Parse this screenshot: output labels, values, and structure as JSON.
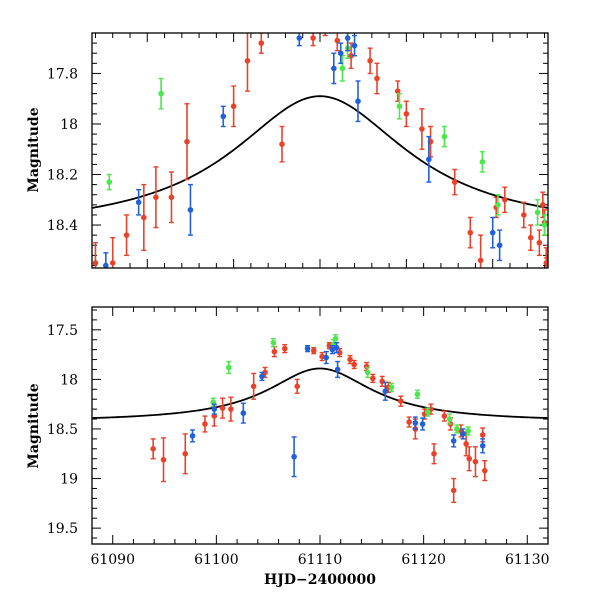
{
  "colors": {
    "red": "#e8432a",
    "green": "#4ae84a",
    "blue": "#2060d8",
    "curve": "#000000"
  },
  "chart_data": [
    {
      "type": "scatter",
      "title": "",
      "xlabel": "",
      "ylabel": "Magnitude",
      "xlim": [
        61096.8,
        61123.2
      ],
      "ylim": [
        18.57,
        17.64
      ],
      "xticks": [
        61100,
        61105,
        61110,
        61115,
        61120
      ],
      "yticks": [
        17.8,
        18,
        18.2,
        18.4
      ],
      "ytick_labels": [
        "17.8",
        "18",
        "18.2",
        "18.4"
      ],
      "curve": {
        "peak_x": 61110.0,
        "peak_y": 17.89,
        "base_y": 18.43,
        "halfwidth": 6.2
      },
      "series": [
        {
          "name": "red",
          "color": "red",
          "points": [
            [
              61097.0,
              18.55,
              0.08
            ],
            [
              61098.0,
              18.55,
              0.1
            ],
            [
              61098.8,
              18.44,
              0.08
            ],
            [
              61099.8,
              18.37,
              0.13
            ],
            [
              61100.5,
              18.29,
              0.12
            ],
            [
              61101.4,
              18.29,
              0.1
            ],
            [
              61102.3,
              18.07,
              0.15
            ],
            [
              61105.0,
              17.93,
              0.08
            ],
            [
              61105.8,
              17.75,
              0.12
            ],
            [
              61106.6,
              17.68,
              0.04
            ],
            [
              61107.8,
              18.08,
              0.07
            ],
            [
              61109.6,
              17.66,
              0.03
            ],
            [
              61110.3,
              17.62,
              0.03
            ],
            [
              61111.0,
              17.67,
              0.04
            ],
            [
              61111.8,
              17.73,
              0.05
            ],
            [
              61112.9,
              17.75,
              0.05
            ],
            [
              61113.3,
              17.82,
              0.06
            ],
            [
              61114.5,
              17.87,
              0.04
            ],
            [
              61115.0,
              17.96,
              0.05
            ],
            [
              61115.9,
              18.02,
              0.08
            ],
            [
              61116.4,
              18.07,
              0.06
            ],
            [
              61117.8,
              18.23,
              0.05
            ],
            [
              61118.7,
              18.43,
              0.06
            ],
            [
              61119.3,
              18.54,
              0.1
            ],
            [
              61120.2,
              18.33,
              0.04
            ],
            [
              61120.7,
              18.3,
              0.05
            ],
            [
              61121.8,
              18.36,
              0.05
            ],
            [
              61122.2,
              18.45,
              0.05
            ],
            [
              61122.7,
              18.47,
              0.05
            ],
            [
              61122.9,
              18.32,
              0.05
            ],
            [
              61123.0,
              18.39,
              0.05
            ],
            [
              61123.1,
              18.55,
              0.06
            ],
            [
              61123.2,
              18.53,
              0.05
            ],
            [
              61123.1,
              18.6,
              0.07
            ]
          ]
        },
        {
          "name": "green",
          "color": "green",
          "points": [
            [
              61097.8,
              18.23,
              0.03
            ],
            [
              61100.8,
              17.88,
              0.06
            ],
            [
              61106.1,
              17.6,
              0.04
            ],
            [
              61111.3,
              17.78,
              0.05
            ],
            [
              61111.6,
              17.7,
              0.04
            ],
            [
              61114.6,
              17.93,
              0.05
            ],
            [
              61117.2,
              18.05,
              0.04
            ],
            [
              61119.4,
              18.15,
              0.04
            ],
            [
              61120.3,
              18.32,
              0.04
            ],
            [
              61122.6,
              18.35,
              0.05
            ],
            [
              61123.0,
              18.4,
              0.04
            ]
          ]
        },
        {
          "name": "blue",
          "color": "blue",
          "points": [
            [
              61097.6,
              18.56,
              0.05
            ],
            [
              61099.5,
              18.31,
              0.05
            ],
            [
              61102.5,
              18.34,
              0.1
            ],
            [
              61104.4,
              17.97,
              0.04
            ],
            [
              61108.8,
              17.66,
              0.03
            ],
            [
              61110.8,
              17.78,
              0.06
            ],
            [
              61111.2,
              17.72,
              0.04
            ],
            [
              61111.6,
              17.66,
              0.05
            ],
            [
              61112.0,
              17.69,
              0.04
            ],
            [
              61112.2,
              17.91,
              0.08
            ],
            [
              61116.3,
              18.14,
              0.09
            ],
            [
              61120.0,
              18.43,
              0.06
            ],
            [
              61120.4,
              18.48,
              0.06
            ]
          ]
        }
      ]
    },
    {
      "type": "scatter",
      "title": "",
      "xlabel": "HJD−2400000",
      "ylabel": "Magnitude",
      "xlim": [
        61088,
        61132
      ],
      "ylim": [
        19.66,
        17.27
      ],
      "xticks": [
        61090,
        61100,
        61110,
        61120,
        61130
      ],
      "yticks": [
        17.5,
        18,
        18.5,
        19,
        19.5
      ],
      "ytick_labels": [
        "17.5",
        "18",
        "18.5",
        "19",
        "19.5"
      ],
      "curve": {
        "peak_x": 61110.0,
        "peak_y": 17.89,
        "base_y": 18.43,
        "halfwidth": 6.2
      },
      "series": [
        {
          "name": "red",
          "color": "red",
          "points": [
            [
              61093.9,
              18.7,
              0.1
            ],
            [
              61094.9,
              18.81,
              0.22
            ],
            [
              61097.0,
              18.75,
              0.2
            ],
            [
              61098.9,
              18.45,
              0.08
            ],
            [
              61099.8,
              18.37,
              0.1
            ],
            [
              61100.6,
              18.29,
              0.1
            ],
            [
              61101.4,
              18.3,
              0.12
            ],
            [
              61103.6,
              18.07,
              0.13
            ],
            [
              61104.7,
              17.93,
              0.05
            ],
            [
              61105.6,
              17.72,
              0.05
            ],
            [
              61106.6,
              17.69,
              0.04
            ],
            [
              61107.8,
              18.07,
              0.07
            ],
            [
              61109.4,
              17.71,
              0.03
            ],
            [
              61110.2,
              17.77,
              0.04
            ],
            [
              61110.9,
              17.66,
              0.03
            ],
            [
              61111.9,
              17.73,
              0.04
            ],
            [
              61112.9,
              17.8,
              0.04
            ],
            [
              61113.3,
              17.85,
              0.04
            ],
            [
              61114.5,
              17.87,
              0.04
            ],
            [
              61115.1,
              17.99,
              0.04
            ],
            [
              61116.0,
              18.02,
              0.05
            ],
            [
              61116.6,
              18.08,
              0.05
            ],
            [
              61117.8,
              18.22,
              0.05
            ],
            [
              61118.6,
              18.43,
              0.05
            ],
            [
              61119.2,
              18.5,
              0.1
            ],
            [
              61120.1,
              18.35,
              0.05
            ],
            [
              61120.7,
              18.3,
              0.05
            ],
            [
              61121.0,
              18.75,
              0.1
            ],
            [
              61122.0,
              18.37,
              0.05
            ],
            [
              61122.6,
              18.45,
              0.06
            ],
            [
              61122.9,
              19.12,
              0.12
            ],
            [
              61123.6,
              18.52,
              0.06
            ],
            [
              61124.1,
              18.65,
              0.12
            ],
            [
              61124.4,
              18.8,
              0.12
            ],
            [
              61125.0,
              18.83,
              0.15
            ],
            [
              61125.7,
              18.56,
              0.07
            ],
            [
              61125.9,
              18.92,
              0.1
            ]
          ]
        },
        {
          "name": "green",
          "color": "green",
          "points": [
            [
              61099.7,
              18.23,
              0.04
            ],
            [
              61101.2,
              17.88,
              0.06
            ],
            [
              61105.5,
              17.63,
              0.04
            ],
            [
              61111.3,
              17.65,
              0.05
            ],
            [
              61111.5,
              17.59,
              0.04
            ],
            [
              61114.6,
              17.93,
              0.05
            ],
            [
              61116.9,
              18.08,
              0.04
            ],
            [
              61119.4,
              18.15,
              0.04
            ],
            [
              61120.4,
              18.33,
              0.04
            ],
            [
              61122.5,
              18.4,
              0.05
            ],
            [
              61123.2,
              18.5,
              0.04
            ],
            [
              61124.3,
              18.52,
              0.04
            ]
          ]
        },
        {
          "name": "blue",
          "color": "blue",
          "points": [
            [
              61097.7,
              18.57,
              0.06
            ],
            [
              61099.8,
              18.3,
              0.05
            ],
            [
              61102.6,
              18.34,
              0.1
            ],
            [
              61104.4,
              17.97,
              0.04
            ],
            [
              61107.5,
              18.78,
              0.2
            ],
            [
              61108.8,
              17.69,
              0.03
            ],
            [
              61110.6,
              17.78,
              0.06
            ],
            [
              61111.2,
              17.7,
              0.04
            ],
            [
              61111.6,
              17.68,
              0.05
            ],
            [
              61111.7,
              17.9,
              0.08
            ],
            [
              61116.3,
              18.12,
              0.09
            ],
            [
              61119.2,
              18.44,
              0.06
            ],
            [
              61119.9,
              18.45,
              0.06
            ],
            [
              61122.9,
              18.62,
              0.06
            ],
            [
              61123.8,
              18.55,
              0.05
            ],
            [
              61125.7,
              18.67,
              0.07
            ]
          ]
        }
      ]
    }
  ]
}
